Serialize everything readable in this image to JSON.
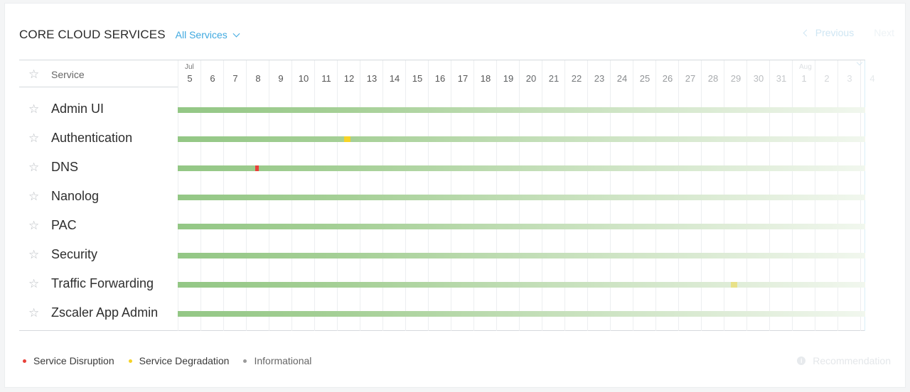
{
  "header": {
    "title": "CORE CLOUD SERVICES",
    "filter_label": "All Services",
    "prev_label": "Previous",
    "next_label": "Next"
  },
  "table": {
    "service_column_label": "Service",
    "months": [
      {
        "label": "Jul",
        "col_index": 0
      },
      {
        "label": "Aug",
        "col_index": 27
      }
    ],
    "days": [
      "5",
      "6",
      "7",
      "8",
      "9",
      "10",
      "11",
      "12",
      "13",
      "14",
      "15",
      "16",
      "17",
      "18",
      "19",
      "20",
      "21",
      "22",
      "23",
      "24",
      "25",
      "26",
      "27",
      "28",
      "29",
      "30",
      "31",
      "1",
      "2",
      "3",
      "4"
    ],
    "services": [
      {
        "name": "Admin UI",
        "incidents": []
      },
      {
        "name": "Authentication",
        "incidents": [
          {
            "day_index": 7,
            "type": "degradation"
          }
        ]
      },
      {
        "name": "DNS",
        "incidents": [
          {
            "day_index": 3,
            "type": "disruption"
          }
        ]
      },
      {
        "name": "Nanolog",
        "incidents": []
      },
      {
        "name": "PAC",
        "incidents": []
      },
      {
        "name": "Security",
        "incidents": []
      },
      {
        "name": "Traffic Forwarding",
        "incidents": [
          {
            "day_index": 24,
            "type": "degradation"
          }
        ]
      },
      {
        "name": "Zscaler App Admin",
        "incidents": []
      }
    ]
  },
  "legend": [
    {
      "label": "Service Disruption",
      "color": "#e8403a"
    },
    {
      "label": "Service Degradation",
      "color": "#f5d327"
    },
    {
      "label": "Informational",
      "color": "#9a9a9a"
    }
  ],
  "recommendation_label": "Recommendation",
  "colors": {
    "accent": "#3fa9e0",
    "status_ok": "#93c785",
    "disruption": "#e8403a",
    "degradation": "#f5d327"
  }
}
